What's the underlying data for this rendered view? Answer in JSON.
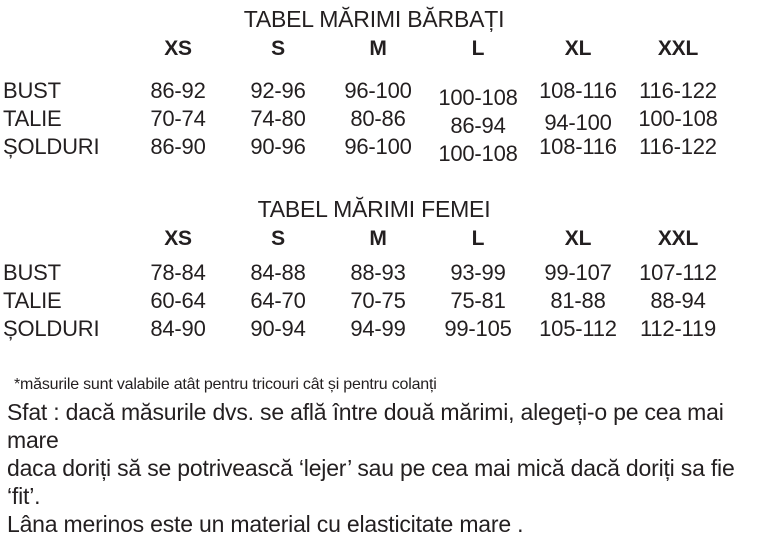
{
  "men_table": {
    "title": "TABEL MĂRIMI BĂRBAȚI",
    "columns": [
      "XS",
      "S",
      "M",
      "L",
      "XL",
      "XXL"
    ],
    "rows": [
      {
        "label": "BUST",
        "values": [
          "86-92",
          "92-96",
          "96-100",
          "100-108",
          "108-116",
          "116-122"
        ]
      },
      {
        "label": "TALIE",
        "values": [
          "70-74",
          "74-80",
          "80-86",
          "86-94",
          "94-100",
          "100-108"
        ]
      },
      {
        "label": "ȘOLDURI",
        "values": [
          "86-90",
          "90-96",
          "96-100",
          "100-108",
          "108-116",
          "116-122"
        ]
      }
    ]
  },
  "women_table": {
    "title": "TABEL MĂRIMI FEMEI",
    "columns": [
      "XS",
      "S",
      "M",
      "L",
      "XL",
      "XXL"
    ],
    "rows": [
      {
        "label": "BUST",
        "values": [
          "78-84",
          "84-88",
          "88-93",
          "93-99",
          "99-107",
          "107-112"
        ]
      },
      {
        "label": "TALIE",
        "values": [
          "60-64",
          "64-70",
          "70-75",
          "75-81",
          "81-88",
          "88-94"
        ]
      },
      {
        "label": "ȘOLDURI",
        "values": [
          "84-90",
          "90-94",
          "94-99",
          "99-105",
          "105-112",
          "112-119"
        ]
      }
    ]
  },
  "notes": {
    "footnote": "*măsurile sunt valabile atât pentru tricouri cât și pentru colanți",
    "advice_line1": "Sfat : dacă măsurile dvs. se află între două mărimi, alegeți-o pe cea mai mare",
    "advice_line2": "daca doriți să se potrivească  ‘lejer’ sau pe cea mai mică dacă doriți sa fie ‘fit’.",
    "material_note": "Lâna merinos  este un material cu elasticitate mare ."
  },
  "colors": {
    "text": "#231f20",
    "background": "#ffffff"
  }
}
